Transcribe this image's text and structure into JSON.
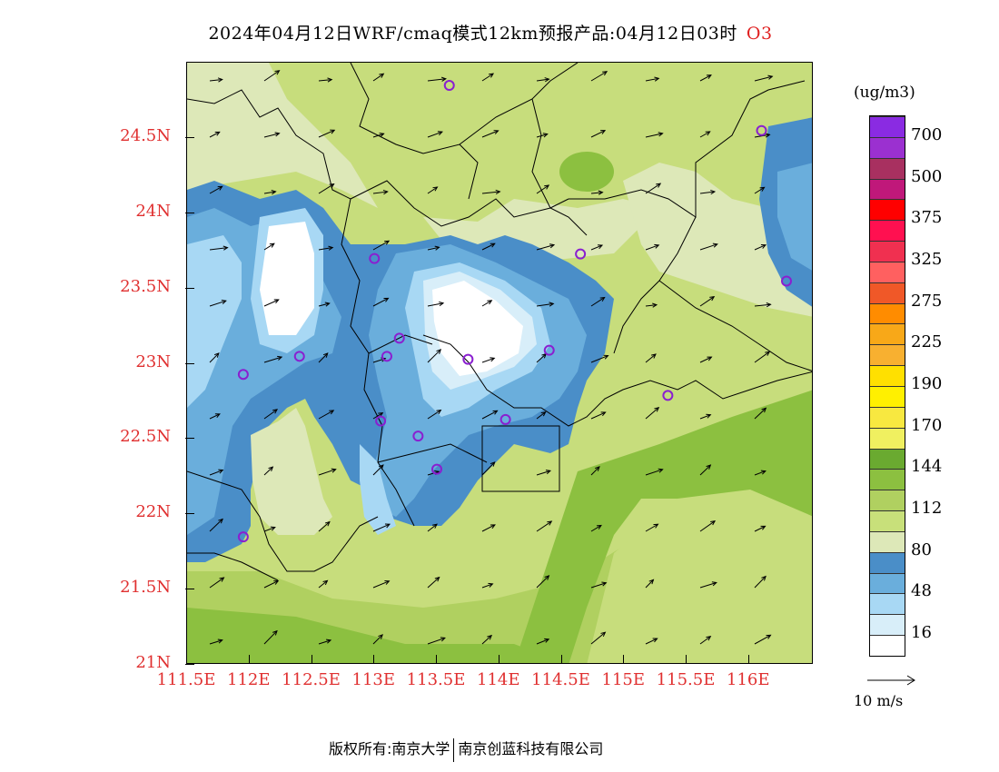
{
  "title": {
    "text": "2024年04月12日WRF/cmaq模式12km预报产品:04月12日03时",
    "species": "O3"
  },
  "axes": {
    "x_ticks": [
      "111.5E",
      "112E",
      "112.5E",
      "113E",
      "113.5E",
      "114E",
      "114.5E",
      "115E",
      "115.5E",
      "116E"
    ],
    "x_values": [
      111.5,
      112,
      112.5,
      113,
      113.5,
      114,
      114.5,
      115,
      115.5,
      116
    ],
    "y_ticks": [
      "21N",
      "21.5N",
      "22N",
      "22.5N",
      "23N",
      "23.5N",
      "24N",
      "24.5N"
    ],
    "y_values": [
      21,
      21.5,
      22,
      22.5,
      23,
      23.5,
      24,
      24.5
    ],
    "lon_range": [
      111.5,
      116.5
    ],
    "lat_range": [
      21,
      25.0
    ],
    "tick_label_color": "#e03030"
  },
  "legend": {
    "unit": "(ug/m3)",
    "labels": [
      "700",
      "500",
      "375",
      "325",
      "275",
      "225",
      "190",
      "170",
      "144",
      "112",
      "80",
      "48",
      "16"
    ],
    "colors": [
      "#8a2be2",
      "#9b30d0",
      "#a83060",
      "#c0187a",
      "#ff0000",
      "#ff1050",
      "#f03050",
      "#ff6060",
      "#f05828",
      "#ff8c00",
      "#f8a818",
      "#f8b030",
      "#ffe000",
      "#fff000",
      "#f8e840",
      "#f0f060",
      "#6aaa30",
      "#8cc040",
      "#b0d060",
      "#c8e07a",
      "#dde8b8",
      "#4a8ec8",
      "#6aaedc",
      "#a8d8f4",
      "#d8eef9",
      "#ffffff"
    ]
  },
  "wind_reference": {
    "label": "10 m/s"
  },
  "stations": [
    {
      "lon": 113.6,
      "lat": 24.85
    },
    {
      "lon": 116.1,
      "lat": 24.55
    },
    {
      "lon": 113.0,
      "lat": 23.7
    },
    {
      "lon": 114.65,
      "lat": 23.73
    },
    {
      "lon": 116.3,
      "lat": 23.55
    },
    {
      "lon": 112.4,
      "lat": 23.05
    },
    {
      "lon": 111.95,
      "lat": 22.93
    },
    {
      "lon": 113.1,
      "lat": 23.05
    },
    {
      "lon": 113.2,
      "lat": 23.17
    },
    {
      "lon": 113.75,
      "lat": 23.03
    },
    {
      "lon": 114.4,
      "lat": 23.09
    },
    {
      "lon": 113.05,
      "lat": 22.62
    },
    {
      "lon": 113.35,
      "lat": 22.52
    },
    {
      "lon": 114.05,
      "lat": 22.63
    },
    {
      "lon": 113.5,
      "lat": 22.3
    },
    {
      "lon": 115.35,
      "lat": 22.79
    },
    {
      "lon": 111.95,
      "lat": 21.85
    }
  ],
  "footer": {
    "left": "版权所有:南京大学",
    "right": "南京创蓝科技有限公司"
  }
}
